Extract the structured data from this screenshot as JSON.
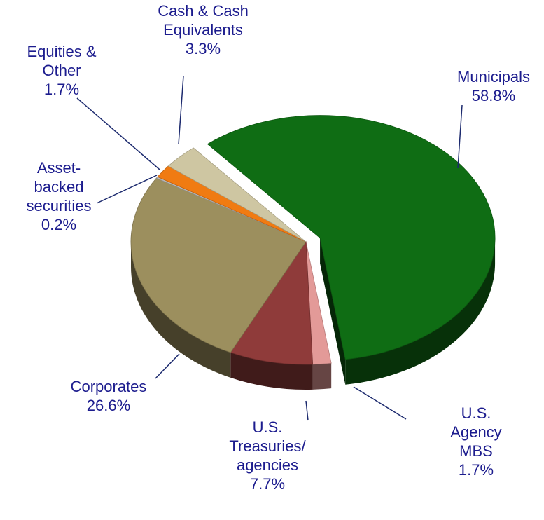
{
  "chart_data": {
    "type": "pie",
    "categories": [
      "Municipals",
      "U.S. Agency\nMBS",
      "U.S.\nTreasuries/\nagencies",
      "Corporates",
      "Asset-\nbacked\nsecurities",
      "Equities &\nOther",
      "Cash & Cash\nEquivalents"
    ],
    "values": [
      58.8,
      1.7,
      7.7,
      26.6,
      0.2,
      1.7,
      3.3
    ],
    "value_labels": [
      "58.8%",
      "1.7%",
      "7.7%",
      "26.6%",
      "0.2%",
      "1.7%",
      "3.3%"
    ],
    "colors": [
      "#0f6d14",
      "#e39a98",
      "#8f3b3a",
      "#9c8f5e",
      "#b8b8b8",
      "#f07b12",
      "#cec6a2"
    ]
  }
}
